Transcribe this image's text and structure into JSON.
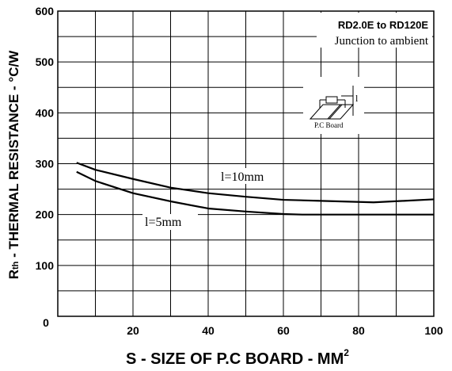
{
  "chart_data": {
    "type": "line",
    "title": "",
    "xlabel": "S - SIZE OF P.C BOARD - MM",
    "xlabel_superscript": "2",
    "ylabel_prefix": "R",
    "ylabel_subscript": "th",
    "ylabel": " - THERMAL RESISTANCE - °C/W",
    "xlim": [
      0,
      100
    ],
    "ylim": [
      0,
      600
    ],
    "x_ticks": [
      "20",
      "40",
      "60",
      "80",
      "100"
    ],
    "y_ticks": [
      "100",
      "200",
      "300",
      "400",
      "500",
      "600"
    ],
    "origin_label": "0",
    "grid": true,
    "legend_box": {
      "line1": "RD2.0E to RD120E",
      "line2": "Junction to ambient"
    },
    "inset_label": "P.C Board",
    "inset_dim": "l",
    "series": [
      {
        "name": "l=10mm",
        "x": [
          5,
          10,
          20,
          30,
          40,
          50,
          60,
          70,
          84,
          92,
          100
        ],
        "y": [
          302,
          288,
          270,
          253,
          242,
          235,
          229,
          227,
          224,
          227,
          230
        ]
      },
      {
        "name": "l=5mm",
        "x": [
          5,
          10,
          20,
          30,
          40,
          50,
          60,
          65,
          80,
          100
        ],
        "y": [
          284,
          266,
          242,
          226,
          212,
          206,
          201,
          200,
          200,
          200
        ]
      }
    ]
  }
}
